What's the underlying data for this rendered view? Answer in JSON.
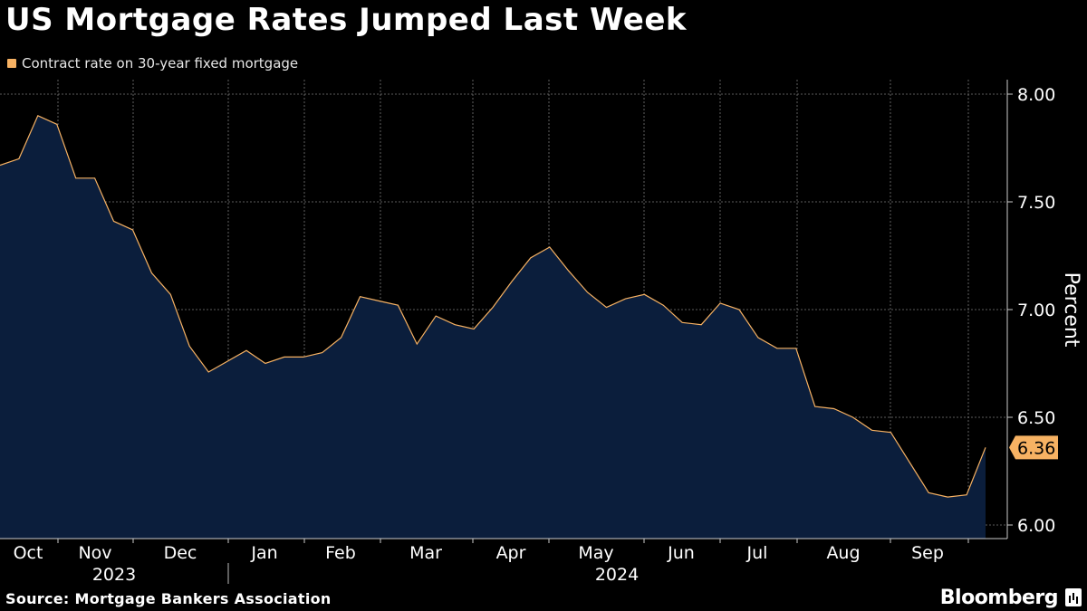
{
  "title": "US Mortgage Rates Jumped Last Week",
  "legend": {
    "label": "Contract rate on 30-year fixed mortgage",
    "color": "#f7b263"
  },
  "source": "Source: Mortgage Bankers Association",
  "brand": "Bloomberg",
  "colors": {
    "line": "#f7b263",
    "area": "#0b1e3c",
    "grid": "#7a7a7a",
    "background": "#000000"
  },
  "chart_data": {
    "type": "area",
    "title": "US Mortgage Rates Jumped Last Week",
    "ylabel": "Percent",
    "xlabel": "",
    "ylim": [
      6.0,
      8.0
    ],
    "yticks": [
      "8.00",
      "7.50",
      "7.00",
      "6.50",
      "6.00"
    ],
    "ytick_values": [
      8.0,
      7.5,
      7.0,
      6.5,
      6.0
    ],
    "month_labels": [
      "Oct",
      "Nov",
      "Dec",
      "Jan",
      "Feb",
      "Mar",
      "Apr",
      "May",
      "Jun",
      "Jul",
      "Aug",
      "Sep"
    ],
    "year_labels": [
      "2023",
      "2024"
    ],
    "last_value_label": "6.36",
    "series": [
      {
        "name": "Contract rate on 30-year fixed mortgage",
        "values": [
          7.67,
          7.7,
          7.9,
          7.86,
          7.61,
          7.61,
          7.41,
          7.37,
          7.17,
          7.07,
          6.83,
          6.71,
          6.76,
          6.81,
          6.75,
          6.78,
          6.78,
          6.8,
          6.87,
          7.06,
          7.04,
          7.02,
          6.84,
          6.97,
          6.93,
          6.91,
          7.01,
          7.13,
          7.24,
          7.29,
          7.18,
          7.08,
          7.01,
          7.05,
          7.07,
          7.02,
          6.94,
          6.93,
          7.03,
          7.0,
          6.87,
          6.82,
          6.82,
          6.55,
          6.54,
          6.5,
          6.44,
          6.43,
          6.29,
          6.15,
          6.13,
          6.14,
          6.36
        ]
      }
    ]
  }
}
